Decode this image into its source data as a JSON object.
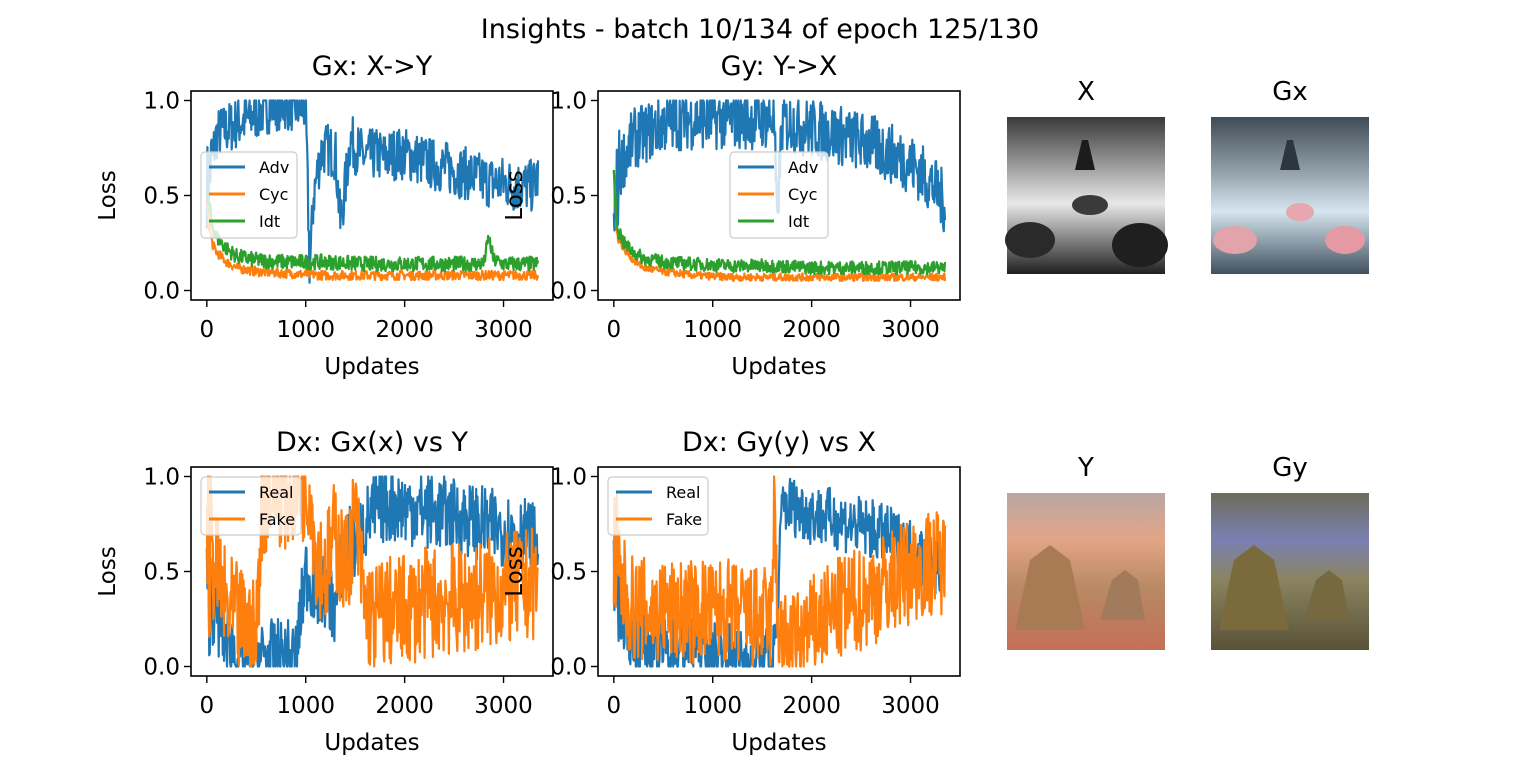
{
  "figure": {
    "suptitle": "Insights - batch 10/134 of epoch 125/130"
  },
  "chart_data": [
    {
      "type": "line",
      "title": "Gx: X->Y",
      "xlabel": "Updates",
      "ylabel": "Loss",
      "xlim": [
        -160,
        3500
      ],
      "ylim": [
        -0.05,
        1.05
      ],
      "xticks": [
        "0",
        "1000",
        "2000",
        "3000"
      ],
      "yticks": [
        "0.0",
        "0.5",
        "1.0"
      ],
      "legend_position": "center-left",
      "series": [
        {
          "name": "Adv",
          "color": "#1f77b4",
          "x": [
            0,
            100,
            200,
            300,
            400,
            500,
            600,
            700,
            800,
            900,
            1000,
            1040,
            1080,
            1150,
            1200,
            1300,
            1350,
            1400,
            1450,
            1500,
            1600,
            1700,
            1800,
            1900,
            2000,
            2100,
            2200,
            2300,
            2400,
            2500,
            2600,
            2700,
            2800,
            2900,
            3000,
            3100,
            3200,
            3300,
            3350
          ],
          "y": [
            0.55,
            0.82,
            0.85,
            0.88,
            0.9,
            0.93,
            0.96,
            0.98,
            0.98,
            0.97,
            0.96,
            0.1,
            0.5,
            0.72,
            0.75,
            0.72,
            0.35,
            0.55,
            0.8,
            0.75,
            0.7,
            0.72,
            0.7,
            0.72,
            0.72,
            0.7,
            0.68,
            0.66,
            0.65,
            0.63,
            0.62,
            0.6,
            0.58,
            0.57,
            0.57,
            0.55,
            0.55,
            0.55,
            0.6
          ]
        },
        {
          "name": "Cyc",
          "color": "#ff7f0e",
          "x": [
            0,
            50,
            100,
            200,
            300,
            500,
            800,
            1200,
            1600,
            2000,
            2500,
            3000,
            3350
          ],
          "y": [
            0.45,
            0.25,
            0.2,
            0.15,
            0.12,
            0.1,
            0.09,
            0.08,
            0.08,
            0.08,
            0.08,
            0.08,
            0.08
          ]
        },
        {
          "name": "Idt",
          "color": "#2ca02c",
          "x": [
            0,
            50,
            100,
            200,
            300,
            500,
            800,
            1200,
            1600,
            2000,
            2400,
            2800,
            2850,
            2900,
            3000,
            3350
          ],
          "y": [
            0.5,
            0.35,
            0.28,
            0.22,
            0.18,
            0.16,
            0.15,
            0.15,
            0.14,
            0.14,
            0.14,
            0.14,
            0.28,
            0.16,
            0.14,
            0.14
          ]
        }
      ]
    },
    {
      "type": "line",
      "title": "Gy: Y->X",
      "xlabel": "Updates",
      "ylabel": "Loss",
      "xlim": [
        -160,
        3500
      ],
      "ylim": [
        -0.05,
        1.05
      ],
      "xticks": [
        "0",
        "1000",
        "2000",
        "3000"
      ],
      "yticks": [
        "0.0",
        "0.5",
        "1.0"
      ],
      "legend_position": "center",
      "series": [
        {
          "name": "Adv",
          "color": "#1f77b4",
          "x": [
            0,
            50,
            100,
            200,
            300,
            400,
            500,
            700,
            900,
            1100,
            1300,
            1500,
            1620,
            1650,
            1700,
            1800,
            2000,
            2200,
            2400,
            2600,
            2800,
            3000,
            3100,
            3200,
            3300,
            3350
          ],
          "y": [
            0.4,
            0.6,
            0.7,
            0.8,
            0.82,
            0.85,
            0.88,
            0.9,
            0.9,
            0.9,
            0.9,
            0.9,
            0.9,
            0.35,
            0.88,
            0.88,
            0.85,
            0.83,
            0.8,
            0.77,
            0.72,
            0.67,
            0.62,
            0.57,
            0.5,
            0.45
          ]
        },
        {
          "name": "Cyc",
          "color": "#ff7f0e",
          "x": [
            0,
            30,
            100,
            200,
            300,
            500,
            800,
            1200,
            1600,
            2000,
            2500,
            3000,
            3350
          ],
          "y": [
            0.65,
            0.3,
            0.22,
            0.16,
            0.12,
            0.1,
            0.08,
            0.07,
            0.07,
            0.07,
            0.07,
            0.07,
            0.07
          ]
        },
        {
          "name": "Idt",
          "color": "#2ca02c",
          "x": [
            0,
            30,
            100,
            200,
            300,
            500,
            800,
            1200,
            1600,
            2000,
            2500,
            3000,
            3350
          ],
          "y": [
            0.6,
            0.35,
            0.25,
            0.2,
            0.17,
            0.15,
            0.14,
            0.13,
            0.13,
            0.12,
            0.12,
            0.12,
            0.12
          ]
        }
      ]
    },
    {
      "type": "line",
      "title": "Dx: Gx(x) vs Y",
      "xlabel": "Updates",
      "ylabel": "Loss",
      "xlim": [
        -160,
        3500
      ],
      "ylim": [
        -0.05,
        1.05
      ],
      "xticks": [
        "0",
        "1000",
        "2000",
        "3000"
      ],
      "yticks": [
        "0.0",
        "0.5",
        "1.0"
      ],
      "legend_position": "top-left",
      "series": [
        {
          "name": "Real",
          "color": "#1f77b4",
          "x": [
            0,
            100,
            200,
            300,
            400,
            500,
            600,
            700,
            800,
            900,
            1000,
            1100,
            1200,
            1300,
            1400,
            1500,
            1600,
            1700,
            1800,
            1900,
            2000,
            2200,
            2400,
            2600,
            2800,
            3000,
            3200,
            3350
          ],
          "y": [
            0.4,
            0.25,
            0.15,
            0.08,
            0.05,
            0.05,
            0.05,
            0.05,
            0.05,
            0.05,
            0.5,
            0.4,
            0.4,
            0.3,
            0.7,
            0.65,
            0.75,
            0.82,
            0.85,
            0.85,
            0.84,
            0.82,
            0.8,
            0.78,
            0.75,
            0.72,
            0.7,
            0.65
          ]
        },
        {
          "name": "Fake",
          "color": "#ff7f0e",
          "x": [
            0,
            100,
            200,
            300,
            400,
            500,
            550,
            600,
            700,
            800,
            900,
            1000,
            1050,
            1100,
            1200,
            1300,
            1400,
            1500,
            1600,
            1700,
            1800,
            1900,
            2000,
            2200,
            2400,
            2600,
            2800,
            3000,
            3200,
            3350
          ],
          "y": [
            0.6,
            0.5,
            0.3,
            0.25,
            0.2,
            0.15,
            0.8,
            0.9,
            0.95,
            0.9,
            0.95,
            0.95,
            0.95,
            0.6,
            0.5,
            0.7,
            0.5,
            0.8,
            0.3,
            0.25,
            0.3,
            0.28,
            0.3,
            0.33,
            0.35,
            0.35,
            0.38,
            0.4,
            0.42,
            0.45
          ]
        }
      ]
    },
    {
      "type": "line",
      "title": "Dx: Gy(y) vs X",
      "xlabel": "Updates",
      "ylabel": "Loss",
      "xlim": [
        -160,
        3500
      ],
      "ylim": [
        -0.05,
        1.05
      ],
      "xticks": [
        "0",
        "1000",
        "2000",
        "3000"
      ],
      "yticks": [
        "0.0",
        "0.5",
        "1.0"
      ],
      "legend_position": "top-left",
      "series": [
        {
          "name": "Real",
          "color": "#1f77b4",
          "x": [
            0,
            100,
            200,
            300,
            400,
            500,
            700,
            900,
            1100,
            1300,
            1500,
            1600,
            1650,
            1700,
            1800,
            1900,
            2000,
            2200,
            2400,
            2600,
            2800,
            3000,
            3200,
            3350
          ],
          "y": [
            0.5,
            0.2,
            0.15,
            0.15,
            0.1,
            0.1,
            0.1,
            0.1,
            0.08,
            0.05,
            0.05,
            0.05,
            0.2,
            0.85,
            0.85,
            0.82,
            0.8,
            0.78,
            0.75,
            0.72,
            0.68,
            0.62,
            0.55,
            0.5
          ]
        },
        {
          "name": "Fake",
          "color": "#ff7f0e",
          "x": [
            0,
            100,
            200,
            300,
            400,
            500,
            600,
            700,
            800,
            900,
            1000,
            1100,
            1200,
            1300,
            1400,
            1500,
            1600,
            1620,
            1650,
            1700,
            1800,
            1900,
            2000,
            2200,
            2400,
            2600,
            2800,
            3000,
            3200,
            3350
          ],
          "y": [
            0.5,
            0.4,
            0.3,
            0.3,
            0.28,
            0.3,
            0.28,
            0.3,
            0.28,
            0.3,
            0.28,
            0.3,
            0.28,
            0.27,
            0.25,
            0.25,
            0.25,
            0.95,
            0.3,
            0.12,
            0.1,
            0.15,
            0.2,
            0.28,
            0.33,
            0.38,
            0.45,
            0.5,
            0.55,
            0.55
          ]
        }
      ]
    }
  ],
  "images": {
    "X": {
      "title": "X",
      "palette": [
        "#1c1c1c",
        "#585858",
        "#bdbdbd",
        "#ececec"
      ]
    },
    "Gx": {
      "title": "Gx",
      "palette": [
        "#2d3b47",
        "#6f7d86",
        "#c5d8e6",
        "#e59aa3"
      ]
    },
    "Y": {
      "title": "Y",
      "palette": [
        "#c9896a",
        "#e0a78a",
        "#a97b55",
        "#8a8a6e"
      ]
    },
    "Gy": {
      "title": "Gy",
      "palette": [
        "#4c4c34",
        "#7d7a55",
        "#7075a6",
        "#9a8f5a"
      ]
    }
  }
}
